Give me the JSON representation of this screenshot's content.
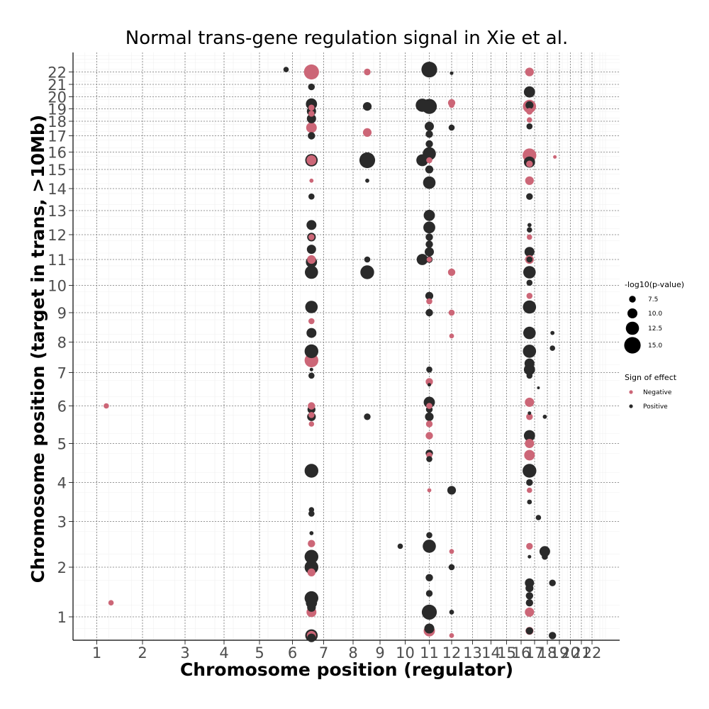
{
  "chart_data": {
    "type": "scatter",
    "title": "Normal trans-gene regulation signal in Xie et al.",
    "xlabel": "Chromosome position (regulator)",
    "ylabel": "Chromosome position (target in trans, >10Mb)",
    "x_ticks": [
      "1",
      "2",
      "3",
      "4",
      "5",
      "6",
      "7",
      "8",
      "9",
      "10",
      "11",
      "12",
      "13",
      "14",
      "15",
      "16",
      "17",
      "18",
      "19",
      "20",
      "21",
      "22"
    ],
    "y_ticks": [
      "1",
      "2",
      "3",
      "4",
      "5",
      "6",
      "7",
      "8",
      "9",
      "10",
      "11",
      "12",
      "13",
      "14",
      "15",
      "16",
      "17",
      "18",
      "19",
      "20",
      "21",
      "22"
    ],
    "xlim": [
      0.5,
      22.5
    ],
    "ylim": [
      0.5,
      22.5
    ],
    "grid": true,
    "colors": {
      "Negative": "#cc6677",
      "Positive": "#2a2a2a"
    },
    "legend": {
      "size_title": "-log10(p-value)",
      "size_values": [
        "7.5",
        "10.0",
        "12.5",
        "15.0"
      ],
      "color_title": "Sign of effect",
      "color_values": [
        "Negative",
        "Positive"
      ],
      "placement": "right"
    },
    "series": [
      {
        "name": "Negative",
        "points": [
          [
            1.2,
            6.0,
            6.5
          ],
          [
            1.3,
            1.3,
            6.5
          ],
          [
            6.6,
            22.0,
            14.0
          ],
          [
            6.6,
            19.1,
            7.0
          ],
          [
            6.6,
            18.6,
            7.0
          ],
          [
            6.6,
            17.5,
            10.5
          ],
          [
            6.6,
            15.5,
            10.0
          ],
          [
            6.6,
            14.4,
            5.5
          ],
          [
            6.6,
            11.9,
            7.0
          ],
          [
            6.6,
            11.0,
            9.0
          ],
          [
            6.6,
            8.7,
            7.0
          ],
          [
            6.6,
            7.4,
            13.0
          ],
          [
            6.6,
            6.0,
            8.0
          ],
          [
            6.6,
            5.75,
            7.0
          ],
          [
            6.6,
            5.5,
            6.5
          ],
          [
            6.6,
            2.45,
            8.0
          ],
          [
            6.6,
            1.9,
            8.5
          ],
          [
            6.6,
            1.1,
            10.0
          ],
          [
            6.6,
            0.6,
            9.5
          ],
          [
            8.5,
            22.0,
            7.5
          ],
          [
            8.5,
            17.2,
            9.0
          ],
          [
            11.0,
            15.5,
            7.0
          ],
          [
            11.0,
            11.0,
            6.5
          ],
          [
            11.0,
            9.4,
            7.0
          ],
          [
            11.0,
            6.7,
            8.0
          ],
          [
            11.0,
            6.0,
            7.0
          ],
          [
            11.0,
            5.5,
            7.5
          ],
          [
            11.0,
            5.2,
            8.0
          ],
          [
            11.0,
            4.7,
            7.0
          ],
          [
            11.0,
            3.8,
            5.5
          ],
          [
            11.0,
            0.7,
            11.0
          ],
          [
            12.0,
            19.5,
            8.0
          ],
          [
            12.0,
            19.3,
            6.5
          ],
          [
            12.0,
            10.5,
            8.0
          ],
          [
            12.0,
            9.0,
            7.0
          ],
          [
            12.0,
            8.2,
            6.0
          ],
          [
            12.0,
            2.3,
            6.0
          ],
          [
            12.0,
            0.6,
            6.0
          ],
          [
            16.6,
            22.0,
            9.0
          ],
          [
            16.6,
            19.2,
            12.5
          ],
          [
            16.6,
            18.8,
            7.5
          ],
          [
            16.6,
            18.1,
            6.5
          ],
          [
            16.6,
            15.8,
            13.0
          ],
          [
            16.6,
            15.3,
            7.5
          ],
          [
            16.6,
            14.4,
            9.0
          ],
          [
            16.6,
            11.9,
            6.5
          ],
          [
            16.6,
            11.0,
            9.0
          ],
          [
            16.6,
            9.6,
            7.0
          ],
          [
            16.6,
            6.1,
            9.5
          ],
          [
            16.6,
            5.7,
            7.5
          ],
          [
            16.6,
            5.0,
            9.5
          ],
          [
            16.6,
            4.7,
            10.5
          ],
          [
            16.6,
            3.8,
            6.5
          ],
          [
            16.6,
            2.4,
            7.5
          ],
          [
            16.6,
            1.1,
            9.5
          ],
          [
            16.6,
            0.7,
            8.5
          ],
          [
            18.6,
            15.7,
            5.0
          ]
        ]
      },
      {
        "name": "Positive",
        "points": [
          [
            5.8,
            22.2,
            6.5
          ],
          [
            6.6,
            20.8,
            7.5
          ],
          [
            6.6,
            19.4,
            11.0
          ],
          [
            6.6,
            18.8,
            9.5
          ],
          [
            6.6,
            18.2,
            9.5
          ],
          [
            6.6,
            17.0,
            8.0
          ],
          [
            6.6,
            15.5,
            12.0
          ],
          [
            6.6,
            13.6,
            7.0
          ],
          [
            6.6,
            12.4,
            10.0
          ],
          [
            6.6,
            11.9,
            9.0
          ],
          [
            6.6,
            11.4,
            9.5
          ],
          [
            6.6,
            10.9,
            11.0
          ],
          [
            6.6,
            10.5,
            12.5
          ],
          [
            6.6,
            9.2,
            12.0
          ],
          [
            6.6,
            8.3,
            10.0
          ],
          [
            6.6,
            7.7,
            13.0
          ],
          [
            6.6,
            7.1,
            5.0
          ],
          [
            6.6,
            6.9,
            7.0
          ],
          [
            6.6,
            5.9,
            8.5
          ],
          [
            6.6,
            5.7,
            9.0
          ],
          [
            6.6,
            4.3,
            13.0
          ],
          [
            6.6,
            3.3,
            6.5
          ],
          [
            6.6,
            3.2,
            7.0
          ],
          [
            6.6,
            2.7,
            5.5
          ],
          [
            6.6,
            2.2,
            13.0
          ],
          [
            6.6,
            2.0,
            13.0
          ],
          [
            6.6,
            1.4,
            13.0
          ],
          [
            6.6,
            1.3,
            11.0
          ],
          [
            6.6,
            1.2,
            9.0
          ],
          [
            6.6,
            0.6,
            12.0
          ],
          [
            6.6,
            0.55,
            9.0
          ],
          [
            8.5,
            19.2,
            9.0
          ],
          [
            8.5,
            15.5,
            14.5
          ],
          [
            8.5,
            14.4,
            5.5
          ],
          [
            8.5,
            11.0,
            7.0
          ],
          [
            8.5,
            10.5,
            13.0
          ],
          [
            8.5,
            5.7,
            7.5
          ],
          [
            9.8,
            2.4,
            6.5
          ],
          [
            10.7,
            19.3,
            12.5
          ],
          [
            10.7,
            15.5,
            11.5
          ],
          [
            10.7,
            11.0,
            11.0
          ],
          [
            11.0,
            22.2,
            14.5
          ],
          [
            11.0,
            19.2,
            14.0
          ],
          [
            11.0,
            17.6,
            9.5
          ],
          [
            11.0,
            17.1,
            8.0
          ],
          [
            11.0,
            16.5,
            8.0
          ],
          [
            11.0,
            15.9,
            12.5
          ],
          [
            11.0,
            15.0,
            8.5
          ],
          [
            11.0,
            14.3,
            12.0
          ],
          [
            11.0,
            12.8,
            11.0
          ],
          [
            11.0,
            12.3,
            11.5
          ],
          [
            11.0,
            11.9,
            8.0
          ],
          [
            11.0,
            11.6,
            8.0
          ],
          [
            11.0,
            11.3,
            9.5
          ],
          [
            11.0,
            11.0,
            7.5
          ],
          [
            11.0,
            9.6,
            8.5
          ],
          [
            11.0,
            9.0,
            8.0
          ],
          [
            11.0,
            7.1,
            7.0
          ],
          [
            11.0,
            6.6,
            5.0
          ],
          [
            11.0,
            6.1,
            11.0
          ],
          [
            11.0,
            5.9,
            7.5
          ],
          [
            11.0,
            5.7,
            9.0
          ],
          [
            11.0,
            4.75,
            8.0
          ],
          [
            11.0,
            4.6,
            7.0
          ],
          [
            11.0,
            2.65,
            7.0
          ],
          [
            11.0,
            2.4,
            12.5
          ],
          [
            11.0,
            1.8,
            8.0
          ],
          [
            11.0,
            1.5,
            7.5
          ],
          [
            11.0,
            1.1,
            14.0
          ],
          [
            11.0,
            0.75,
            10.0
          ],
          [
            12.0,
            21.9,
            5.0
          ],
          [
            12.0,
            17.5,
            7.0
          ],
          [
            12.0,
            3.8,
            9.0
          ],
          [
            12.0,
            2.0,
            7.0
          ],
          [
            12.0,
            1.1,
            6.0
          ],
          [
            16.6,
            20.4,
            11.0
          ],
          [
            16.6,
            19.3,
            8.5
          ],
          [
            16.6,
            17.6,
            7.0
          ],
          [
            16.6,
            15.4,
            11.0
          ],
          [
            16.6,
            13.6,
            7.5
          ],
          [
            16.6,
            12.4,
            5.5
          ],
          [
            16.6,
            12.2,
            6.5
          ],
          [
            16.6,
            11.3,
            10.0
          ],
          [
            16.6,
            11.0,
            7.0
          ],
          [
            16.6,
            10.5,
            12.0
          ],
          [
            16.6,
            10.1,
            7.0
          ],
          [
            16.6,
            9.2,
            12.5
          ],
          [
            16.6,
            8.3,
            12.0
          ],
          [
            16.6,
            7.7,
            12.5
          ],
          [
            16.6,
            7.3,
            10.0
          ],
          [
            16.6,
            7.1,
            11.0
          ],
          [
            16.6,
            6.9,
            7.0
          ],
          [
            16.6,
            5.8,
            5.0
          ],
          [
            16.6,
            5.2,
            11.0
          ],
          [
            16.6,
            4.3,
            13.0
          ],
          [
            16.6,
            4.0,
            7.5
          ],
          [
            16.6,
            3.5,
            6.0
          ],
          [
            16.6,
            2.2,
            5.0
          ],
          [
            16.6,
            1.7,
            9.5
          ],
          [
            16.6,
            1.6,
            8.5
          ],
          [
            16.6,
            1.45,
            8.0
          ],
          [
            16.6,
            1.3,
            8.0
          ],
          [
            16.6,
            0.7,
            8.0
          ],
          [
            17.3,
            6.5,
            4.5
          ],
          [
            17.3,
            3.1,
            6.5
          ],
          [
            17.8,
            2.3,
            10.5
          ],
          [
            17.8,
            2.2,
            7.0
          ],
          [
            17.8,
            5.7,
            5.5
          ],
          [
            18.4,
            8.3,
            5.5
          ],
          [
            18.4,
            7.8,
            6.5
          ],
          [
            18.4,
            1.7,
            7.5
          ],
          [
            18.4,
            0.6,
            8.0
          ]
        ]
      }
    ]
  }
}
